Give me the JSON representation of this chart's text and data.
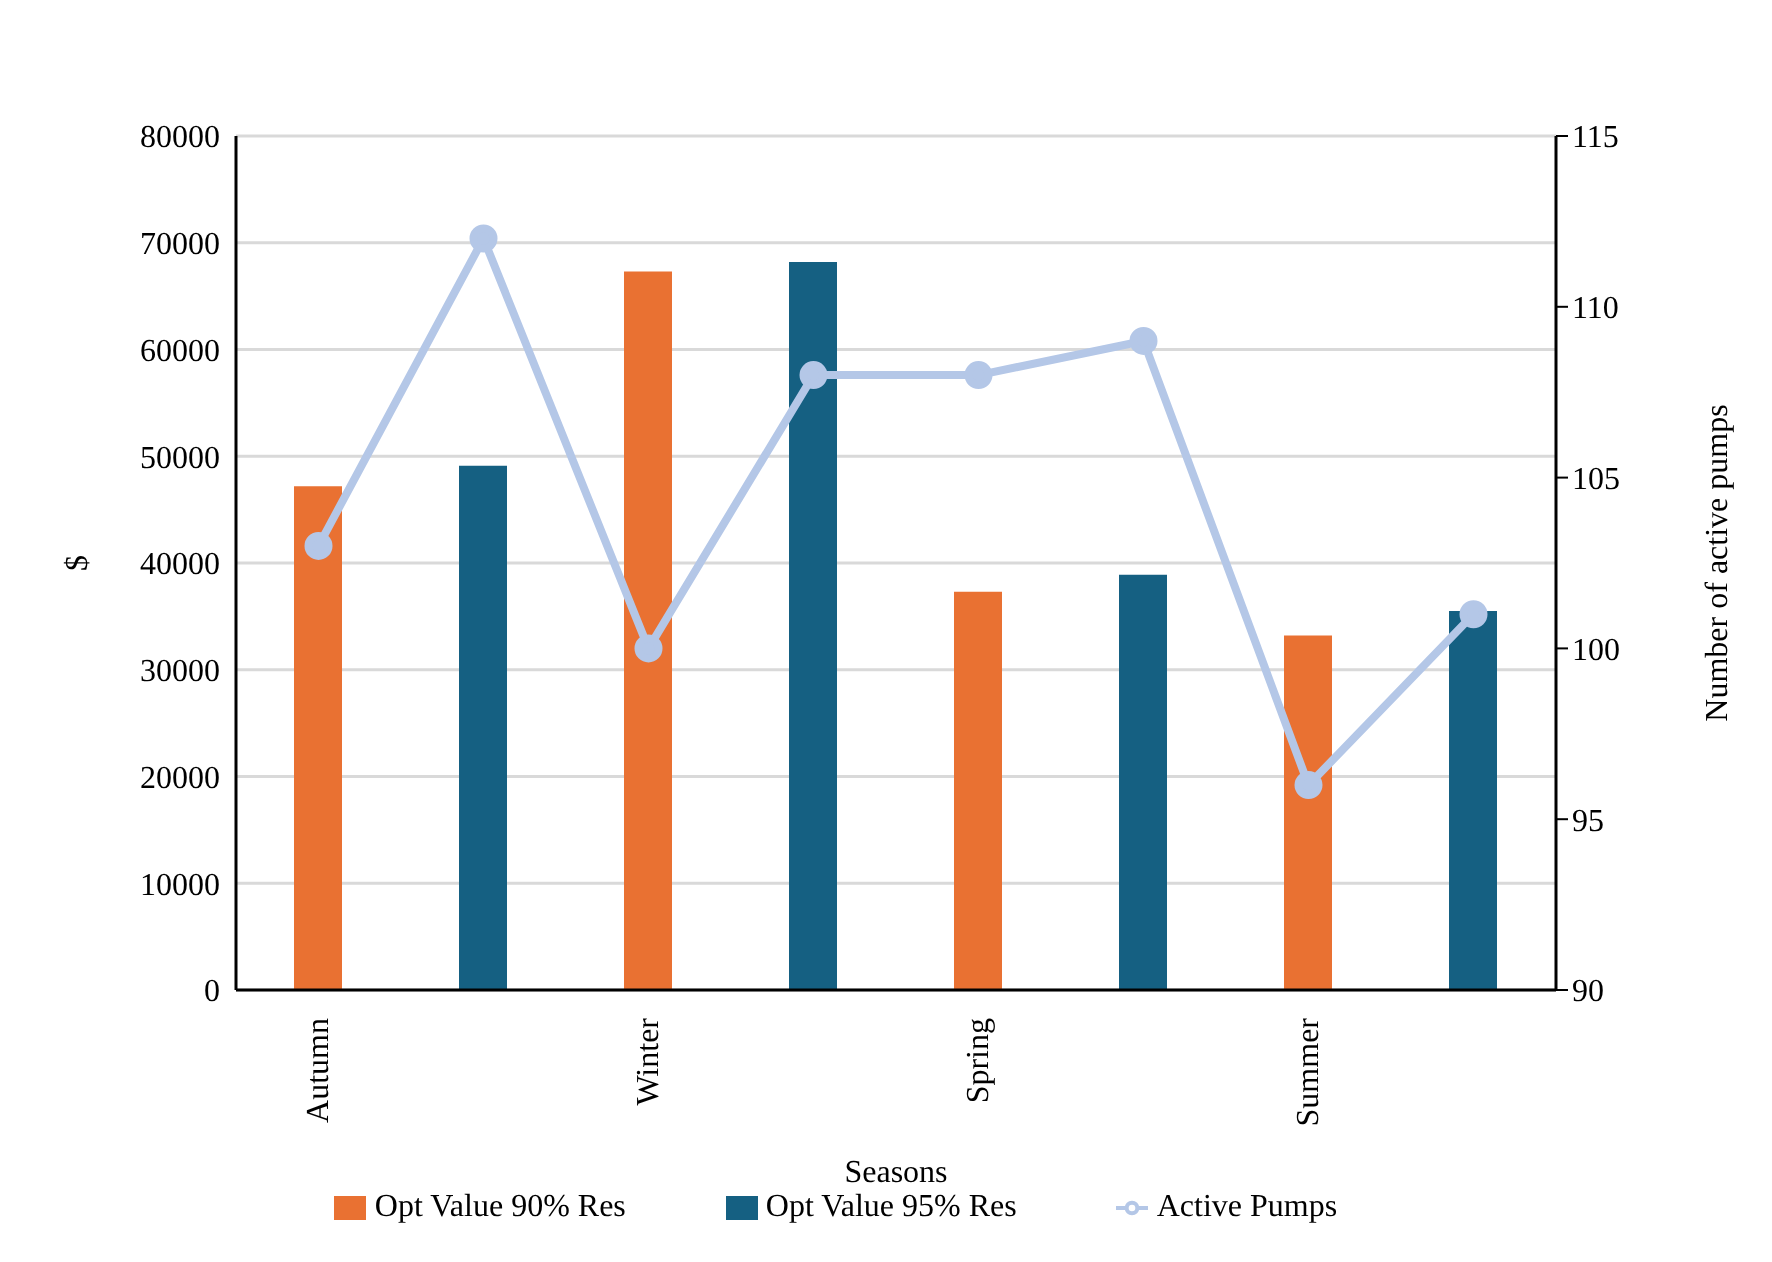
{
  "chart_data": {
    "type": "bar",
    "xlabel": "Seasons",
    "ylabel": "$",
    "y2label": "Number of active pumps",
    "categories": [
      "Autumn",
      null,
      "Winter",
      null,
      "Spring",
      null,
      "Summer",
      null
    ],
    "series": [
      {
        "name": "Opt Value 90% Res",
        "color": "#e97132",
        "values": [
          47200,
          null,
          67300,
          null,
          37300,
          null,
          33200,
          null
        ]
      },
      {
        "name": "Opt Value 95% Res",
        "color": "#156082",
        "values": [
          null,
          49100,
          null,
          68200,
          null,
          38900,
          null,
          35500
        ]
      },
      {
        "name": "Active Pumps",
        "type": "line",
        "axis": "y2",
        "color": "#b4c7e7",
        "marker": "circle",
        "values": [
          103,
          112,
          100,
          108,
          108,
          109,
          96,
          101
        ]
      }
    ],
    "ylim": [
      0,
      80000
    ],
    "yticks": [
      0,
      10000,
      20000,
      30000,
      40000,
      50000,
      60000,
      70000,
      80000
    ],
    "y2lim": [
      90,
      115
    ],
    "y2ticks": [
      90,
      95,
      100,
      105,
      110,
      115
    ],
    "grid": "y",
    "legend": "bottom"
  }
}
